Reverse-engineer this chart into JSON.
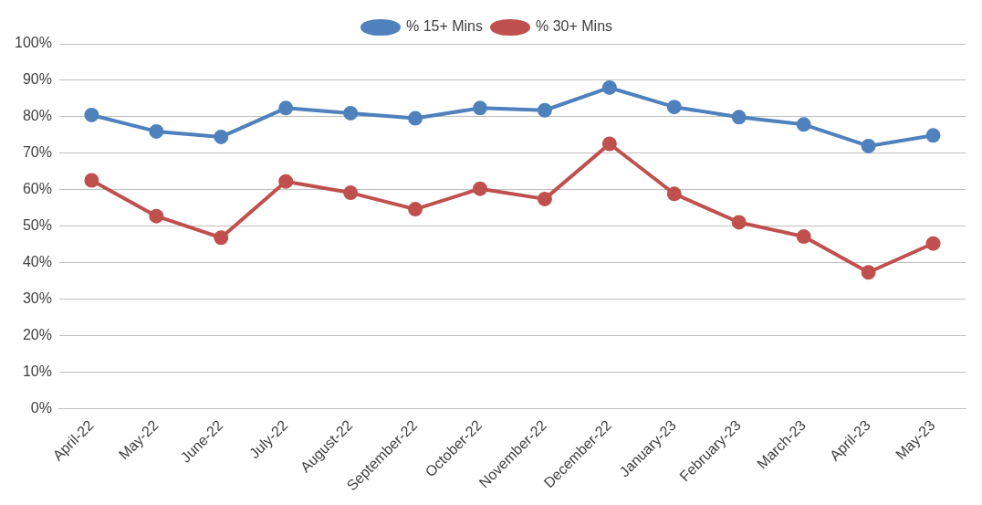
{
  "chart_data": {
    "type": "line",
    "categories": [
      "April-22",
      "May-22",
      "June-22",
      "July-22",
      "August-22",
      "September-22",
      "October-22",
      "November-22",
      "December-22",
      "January-23",
      "February-23",
      "March-23",
      "April-23",
      "May-23"
    ],
    "series": [
      {
        "name": "% 15+ Mins",
        "color": "#4f81bd",
        "values": [
          80.5,
          76,
          74.5,
          82.4,
          81,
          79.6,
          82.4,
          81.8,
          88,
          82.7,
          79.9,
          77.9,
          72,
          74.9
        ]
      },
      {
        "name": "% 30+ Mins",
        "color": "#c0504d",
        "values": [
          62.6,
          52.8,
          46.9,
          62.3,
          59.2,
          54.7,
          60.3,
          57.5,
          72.6,
          58.9,
          51.1,
          47.2,
          37.4,
          45.3
        ]
      }
    ],
    "ylim": [
      0,
      100
    ],
    "yticks": [
      {
        "value": 0,
        "label": "0%"
      },
      {
        "value": 10,
        "label": "10%"
      },
      {
        "value": 20,
        "label": "20%"
      },
      {
        "value": 30,
        "label": "30%"
      },
      {
        "value": 40,
        "label": "40%"
      },
      {
        "value": 50,
        "label": "50%"
      },
      {
        "value": 60,
        "label": "60%"
      },
      {
        "value": 70,
        "label": "70%"
      },
      {
        "value": 80,
        "label": "80%"
      },
      {
        "value": 90,
        "label": "90%"
      },
      {
        "value": 100,
        "label": "100%"
      }
    ],
    "grid": "y",
    "legend": "top",
    "marker": "circle",
    "line_style": "solid"
  }
}
